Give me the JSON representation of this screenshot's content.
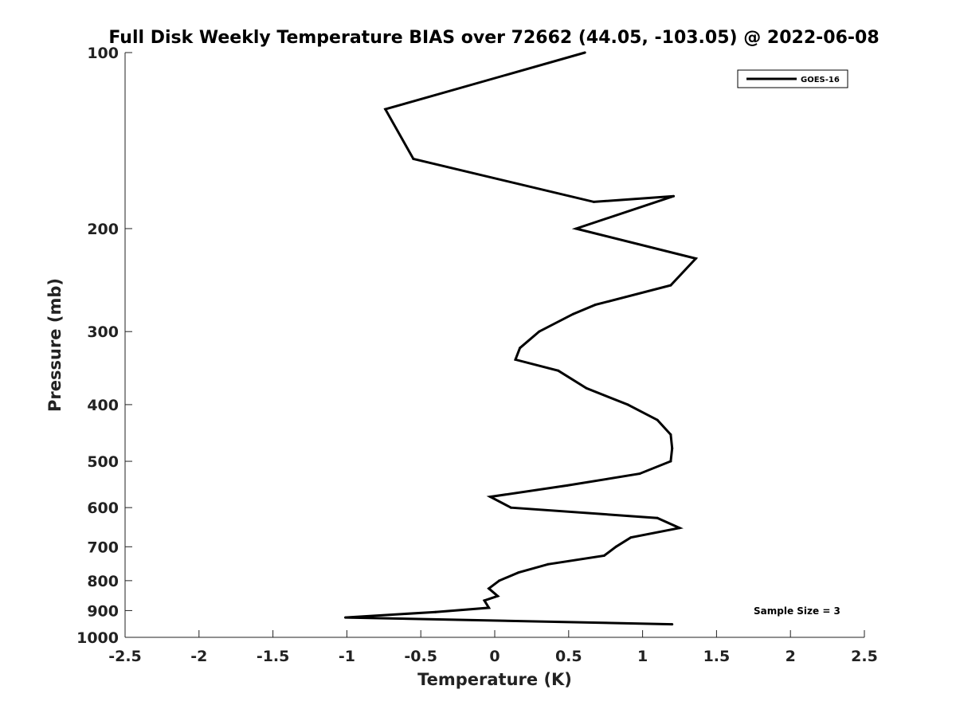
{
  "chart_data": {
    "type": "line",
    "title": "Full Disk Weekly Temperature BIAS over 72662 (44.05, -103.05) @ 2022-06-08",
    "xlabel": "Temperature (K)",
    "ylabel": "Pressure (mb)",
    "xlim": [
      -2.5,
      2.5
    ],
    "ylim": [
      100,
      1000
    ],
    "y_scale": "log",
    "y_reversed": true,
    "x_ticks": [
      "-2.5",
      "-2",
      "-1.5",
      "-1",
      "-0.5",
      "0",
      "0.5",
      "1",
      "1.5",
      "2",
      "2.5"
    ],
    "y_ticks": [
      "100",
      "200",
      "300",
      "400",
      "500",
      "600",
      "700",
      "800",
      "900",
      "1000"
    ],
    "grid": false,
    "legend_position": "top-right",
    "annotation": "Sample Size = 3",
    "line_color": "#000000",
    "series": [
      {
        "name": "GOES-16",
        "points": [
          {
            "x": 0.61,
            "y": 100
          },
          {
            "x": -0.74,
            "y": 125
          },
          {
            "x": -0.55,
            "y": 152
          },
          {
            "x": 0.67,
            "y": 180
          },
          {
            "x": 1.21,
            "y": 176
          },
          {
            "x": 0.55,
            "y": 200
          },
          {
            "x": 1.36,
            "y": 225
          },
          {
            "x": 1.19,
            "y": 250
          },
          {
            "x": 0.68,
            "y": 270
          },
          {
            "x": 0.53,
            "y": 280
          },
          {
            "x": 0.3,
            "y": 300
          },
          {
            "x": 0.17,
            "y": 320
          },
          {
            "x": 0.14,
            "y": 335
          },
          {
            "x": 0.43,
            "y": 350
          },
          {
            "x": 0.62,
            "y": 375
          },
          {
            "x": 0.9,
            "y": 400
          },
          {
            "x": 1.1,
            "y": 425
          },
          {
            "x": 1.19,
            "y": 450
          },
          {
            "x": 1.2,
            "y": 475
          },
          {
            "x": 1.19,
            "y": 500
          },
          {
            "x": 0.98,
            "y": 525
          },
          {
            "x": 0.49,
            "y": 550
          },
          {
            "x": -0.03,
            "y": 575
          },
          {
            "x": 0.11,
            "y": 600
          },
          {
            "x": 1.1,
            "y": 625
          },
          {
            "x": 1.25,
            "y": 650
          },
          {
            "x": 0.92,
            "y": 675
          },
          {
            "x": 0.82,
            "y": 700
          },
          {
            "x": 0.74,
            "y": 725
          },
          {
            "x": 0.36,
            "y": 750
          },
          {
            "x": 0.16,
            "y": 775
          },
          {
            "x": 0.03,
            "y": 800
          },
          {
            "x": -0.04,
            "y": 825
          },
          {
            "x": 0.02,
            "y": 850
          },
          {
            "x": -0.07,
            "y": 865
          },
          {
            "x": -0.04,
            "y": 890
          },
          {
            "x": -0.4,
            "y": 905
          },
          {
            "x": -1.01,
            "y": 925
          },
          {
            "x": 1.2,
            "y": 950
          }
        ]
      }
    ]
  }
}
